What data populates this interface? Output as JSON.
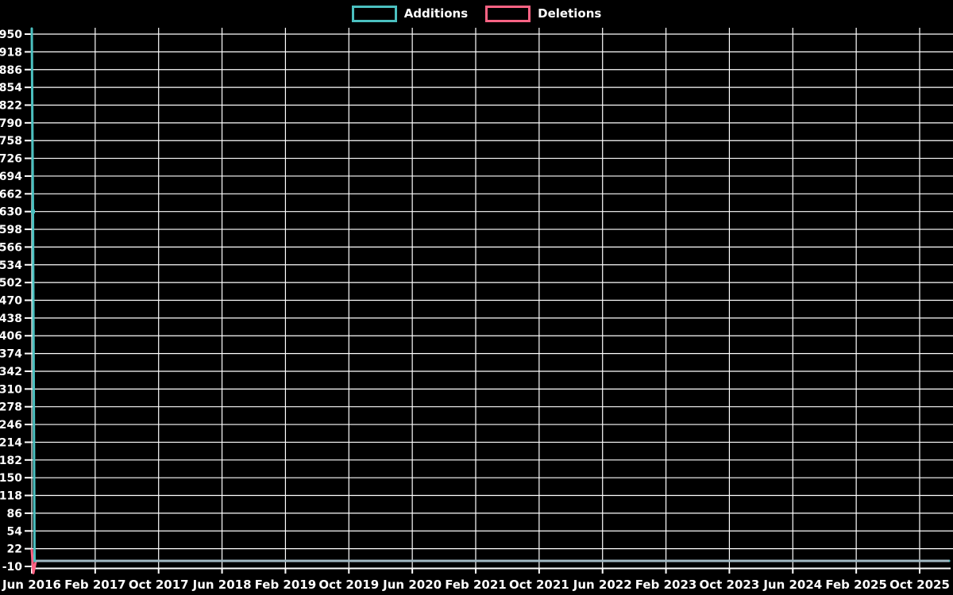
{
  "legend": {
    "items": [
      {
        "label": "Additions",
        "color": "#4bc0c0"
      },
      {
        "label": "Deletions",
        "color": "#ff6384"
      }
    ]
  },
  "chart_data": {
    "type": "line",
    "title": "",
    "background_color": "#000000",
    "grid": {
      "show": true,
      "color": "#ffffff"
    },
    "text_color": "#ffffff",
    "legend_position": "top-center",
    "x_axis": {
      "label": "",
      "tick_labels": [
        "Jun 2016",
        "Feb 2017",
        "Oct 2017",
        "Jun 2018",
        "Feb 2019",
        "Oct 2019",
        "Jun 2020",
        "Feb 2021",
        "Oct 2021",
        "Jun 2022",
        "Feb 2023",
        "Oct 2023",
        "Jun 2024",
        "Feb 2025",
        "Oct 2025"
      ],
      "tick_interval": "8 months"
    },
    "y_axis": {
      "label": "",
      "min": -10,
      "max": 950,
      "tick_step": 32
    },
    "series": [
      {
        "name": "Additions",
        "color": "#4bc0c0",
        "summary": "Spike at the very start: about 960 then about 630 in the first two weeks of Jun 2016, about 0 afterwards through Oct 2025",
        "render_points": [
          [
            0,
            960
          ],
          [
            0.0013,
            630
          ],
          [
            0.003,
            0
          ],
          [
            1,
            0
          ]
        ]
      },
      {
        "name": "Deletions",
        "color": "#ff6384",
        "summary": "About 20 in the first week of Jun 2016, about 0 afterwards; the small dip below the axis at the start is curve overshoot in the original render",
        "render_points": [
          [
            0,
            20
          ],
          [
            0.0017,
            -22
          ],
          [
            0.0045,
            0
          ],
          [
            1,
            0
          ]
        ]
      }
    ],
    "overlap_line": {
      "note": "where both series sit at about 0 the overlapping strokes render blue-grey",
      "color": "#a2b9c3",
      "value": 0,
      "from": 0.0045,
      "to": 1
    },
    "point_marker": {
      "series": "Additions",
      "x": 0.0013,
      "value": 630
    }
  }
}
